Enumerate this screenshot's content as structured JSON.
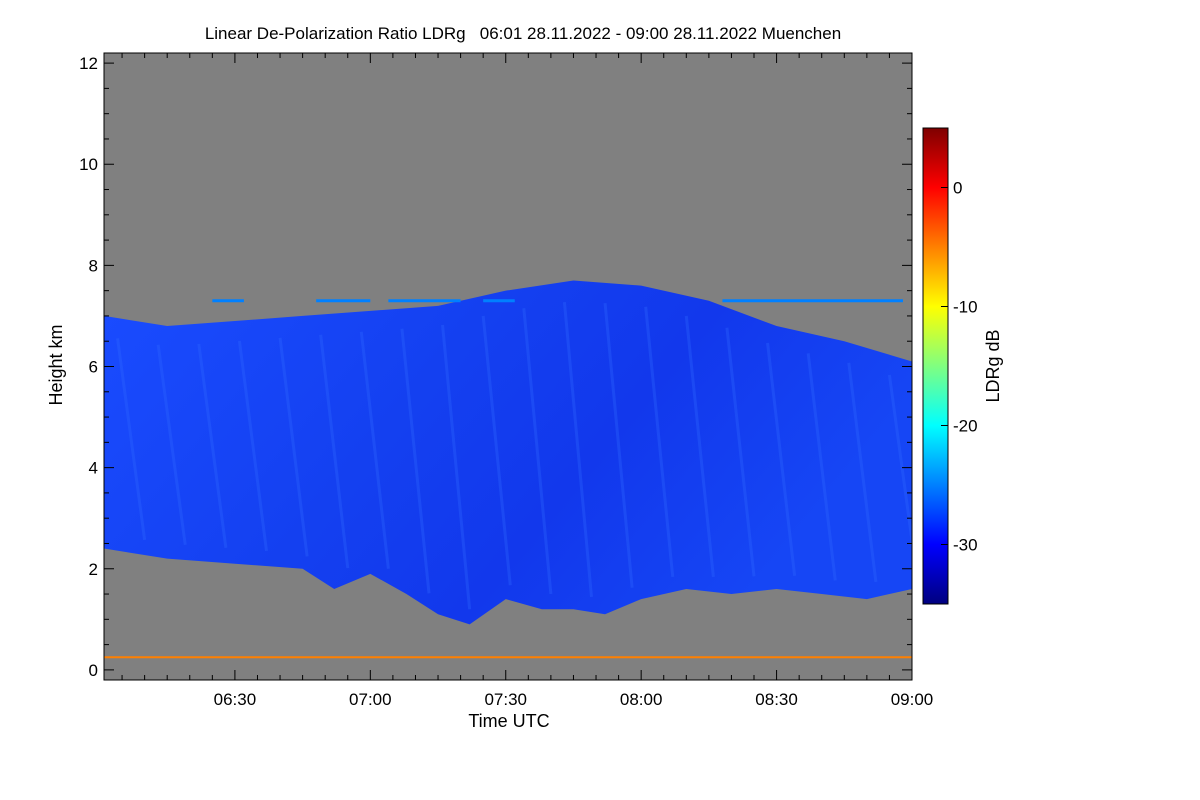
{
  "chart_data": {
    "type": "heatmap",
    "title": "Linear De-Polarization Ratio LDRg   06:01 28.11.2022 - 09:00 28.11.2022 Muenchen",
    "xlabel": "Time UTC",
    "ylabel": "Height km",
    "xlim_minutes": [
      361,
      540
    ],
    "ylim": [
      -0.2,
      12.2
    ],
    "x_ticks": [
      {
        "label": "06:30",
        "minutes": 390
      },
      {
        "label": "07:00",
        "minutes": 420
      },
      {
        "label": "07:30",
        "minutes": 450
      },
      {
        "label": "08:00",
        "minutes": 480
      },
      {
        "label": "08:30",
        "minutes": 510
      },
      {
        "label": "09:00",
        "minutes": 540
      }
    ],
    "y_ticks": [
      0,
      2,
      4,
      6,
      8,
      10,
      12
    ],
    "colorbar": {
      "label": "LDRg dB",
      "range": [
        -35,
        5
      ],
      "ticks": [
        0,
        -10,
        -20,
        -30
      ],
      "colors": [
        "#00007f",
        "#0000ff",
        "#0080ff",
        "#00ffff",
        "#80ff80",
        "#ffff00",
        "#ff8000",
        "#ff0000",
        "#7f0000"
      ]
    },
    "background_color": "#808080",
    "cloud_top_km": [
      {
        "minutes": 361,
        "km": 7.0
      },
      {
        "minutes": 375,
        "km": 6.8
      },
      {
        "minutes": 390,
        "km": 6.9
      },
      {
        "minutes": 405,
        "km": 7.0
      },
      {
        "minutes": 420,
        "km": 7.1
      },
      {
        "minutes": 435,
        "km": 7.2
      },
      {
        "minutes": 450,
        "km": 7.5
      },
      {
        "minutes": 465,
        "km": 7.7
      },
      {
        "minutes": 480,
        "km": 7.6
      },
      {
        "minutes": 495,
        "km": 7.3
      },
      {
        "minutes": 510,
        "km": 6.8
      },
      {
        "minutes": 525,
        "km": 6.5
      },
      {
        "minutes": 540,
        "km": 6.1
      }
    ],
    "cloud_base_km": [
      {
        "minutes": 361,
        "km": 2.4
      },
      {
        "minutes": 375,
        "km": 2.2
      },
      {
        "minutes": 390,
        "km": 2.1
      },
      {
        "minutes": 405,
        "km": 2.0
      },
      {
        "minutes": 412,
        "km": 1.6
      },
      {
        "minutes": 420,
        "km": 1.9
      },
      {
        "minutes": 428,
        "km": 1.5
      },
      {
        "minutes": 435,
        "km": 1.1
      },
      {
        "minutes": 442,
        "km": 0.9
      },
      {
        "minutes": 450,
        "km": 1.4
      },
      {
        "minutes": 458,
        "km": 1.2
      },
      {
        "minutes": 465,
        "km": 1.2
      },
      {
        "minutes": 472,
        "km": 1.1
      },
      {
        "minutes": 480,
        "km": 1.4
      },
      {
        "minutes": 490,
        "km": 1.6
      },
      {
        "minutes": 500,
        "km": 1.5
      },
      {
        "minutes": 510,
        "km": 1.6
      },
      {
        "minutes": 520,
        "km": 1.5
      },
      {
        "minutes": 530,
        "km": 1.4
      },
      {
        "minutes": 540,
        "km": 1.6
      }
    ],
    "annotations": [
      {
        "type": "aerosol_layer",
        "km": 0.25,
        "ldr_db": -7
      },
      {
        "type": "thin_layer",
        "km": 7.3,
        "ldr_db": -23
      }
    ]
  }
}
